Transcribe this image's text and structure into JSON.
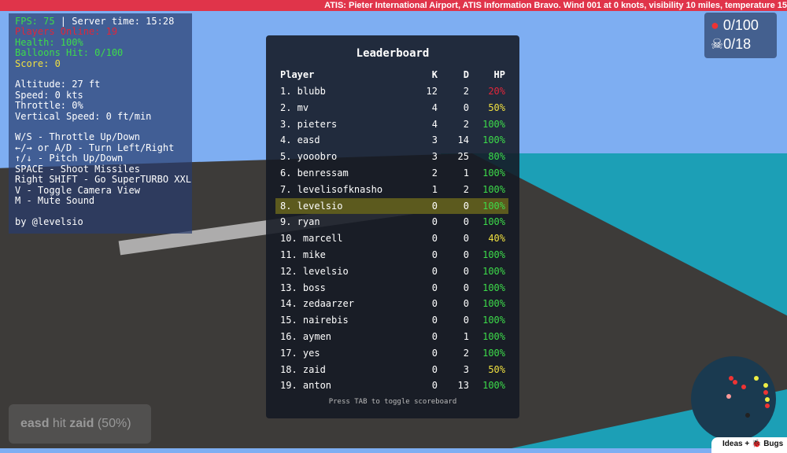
{
  "atis": "ATIS: Pieter International Airport, ATIS Information Bravo. Wind 001 at 0 knots, visibility 10 miles, temperature 15",
  "hud": {
    "fps": "FPS: 75",
    "server_time": " | Server time: 15:28",
    "players_online": "Players Online: 19",
    "health": "Health: 100%",
    "balloons": "Balloons Hit: 0/100",
    "score": "Score: 0",
    "altitude": "Altitude: 27 ft",
    "speed": "Speed: 0 kts",
    "throttle": "Throttle: 0%",
    "vspeed": "Vertical Speed: 0 ft/min",
    "controls": [
      "W/S - Throttle Up/Down",
      "←/→ or A/D - Turn Left/Right",
      "↑/↓ - Pitch Up/Down",
      "SPACE - Shoot Missiles",
      "Right SHIFT - Go SuperTURBO XXL",
      "V - Toggle Camera View",
      "M - Mute Sound"
    ],
    "credit": "by @levelsio"
  },
  "counters": {
    "balloons": "0/100",
    "kills": "0/18",
    "balloon_icon": "balloon-icon",
    "kills_icon": "skull-icon"
  },
  "leaderboard": {
    "title": "Leaderboard",
    "headers": [
      "Player",
      "K",
      "D",
      "HP"
    ],
    "rows": [
      [
        "1. blubb",
        "12",
        "2",
        "20%"
      ],
      [
        "2. mv",
        "4",
        "0",
        "50%"
      ],
      [
        "3. pieters",
        "4",
        "2",
        "100%"
      ],
      [
        "4. easd",
        "3",
        "14",
        "100%"
      ],
      [
        "5. yooobro",
        "3",
        "25",
        "80%"
      ],
      [
        "6. benressam",
        "2",
        "1",
        "100%"
      ],
      [
        "7. levelisofknasho",
        "1",
        "2",
        "100%"
      ],
      [
        "8. levelsio",
        "0",
        "0",
        "100%"
      ],
      [
        "9. ryan",
        "0",
        "0",
        "100%"
      ],
      [
        "10. marcell",
        "0",
        "0",
        "40%"
      ],
      [
        "11. mike",
        "0",
        "0",
        "100%"
      ],
      [
        "12. levelsio",
        "0",
        "0",
        "100%"
      ],
      [
        "13. boss",
        "0",
        "0",
        "100%"
      ],
      [
        "14. zedaarzer",
        "0",
        "0",
        "100%"
      ],
      [
        "15. nairebis",
        "0",
        "0",
        "100%"
      ],
      [
        "16. aymen",
        "0",
        "1",
        "100%"
      ],
      [
        "17. yes",
        "0",
        "2",
        "100%"
      ],
      [
        "18. zaid",
        "0",
        "3",
        "50%"
      ],
      [
        "19. anton",
        "0",
        "13",
        "100%"
      ]
    ],
    "highlight_index": 7,
    "footer": "Press TAB to toggle scoreboard"
  },
  "kill_feed": {
    "attacker": "easd",
    "verb": " hit ",
    "victim": "zaid",
    "amount": " (50%)"
  },
  "ideas": "Ideas + 🐞 Bugs",
  "colors": {
    "hp_full": "#3ddc4a",
    "hp_mid": "#f0e040",
    "hp_low": "#e0263a",
    "atis_bg": "#e0344a"
  }
}
